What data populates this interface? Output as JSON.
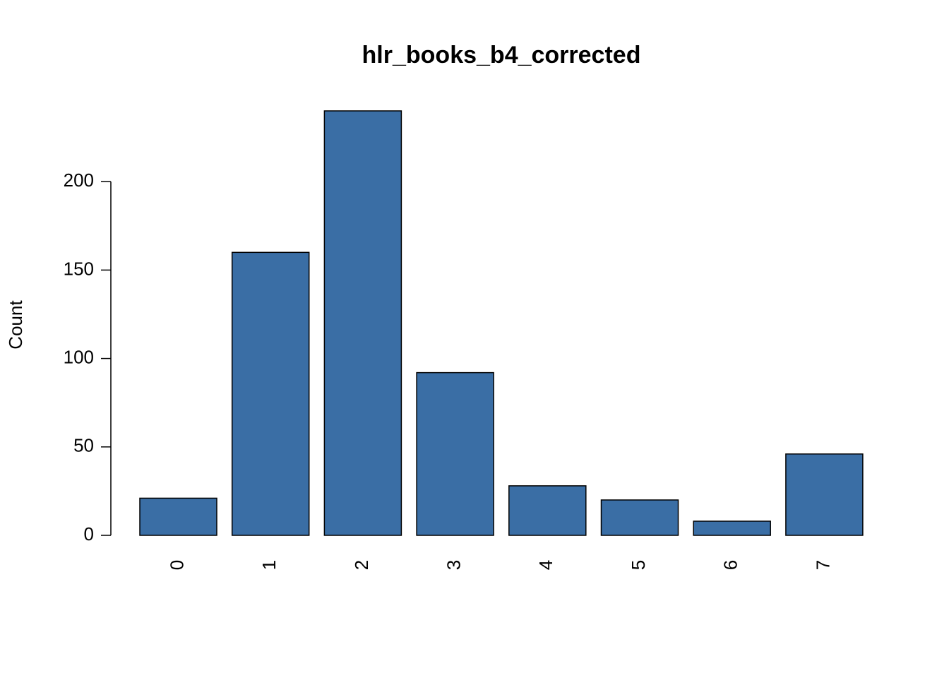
{
  "chart_data": {
    "type": "bar",
    "title": "hlr_books_b4_corrected",
    "y_label": "Count",
    "categories": [
      "0",
      "1",
      "2",
      "3",
      "4",
      "5",
      "6",
      "7"
    ],
    "values": [
      21,
      160,
      240,
      92,
      28,
      20,
      8,
      46
    ],
    "color": "#3a6ea5",
    "ylim": [
      0,
      240
    ],
    "yticks": [
      0,
      50,
      100,
      150,
      200
    ],
    "grid": false
  }
}
